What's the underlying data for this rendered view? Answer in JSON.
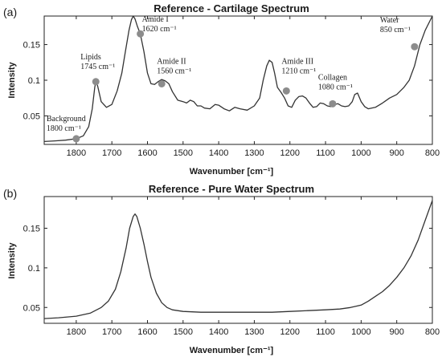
{
  "colors": {
    "line": "#333333",
    "marker": "#8c8c8c",
    "axes": "#222222"
  },
  "chart_data": [
    {
      "type": "line",
      "panel_label": "(a)",
      "title": "Reference - Cartilage Spectrum",
      "xlabel": "Wavenumber [cm⁻¹]",
      "ylabel": "Intensity",
      "xlim": [
        1890,
        800
      ],
      "ylim": [
        0.01,
        0.19
      ],
      "x_reversed": true,
      "grid": false,
      "xticks": [
        1800,
        1700,
        1600,
        1500,
        1400,
        1300,
        1200,
        1100,
        1000,
        900,
        800
      ],
      "yticks": [
        0.05,
        0.1,
        0.15
      ],
      "ytick_labels": [
        "0.05",
        "0.1",
        "0.15"
      ],
      "series": [
        {
          "x": [
            1890,
            1860,
            1830,
            1800,
            1780,
            1765,
            1755,
            1748,
            1745,
            1740,
            1730,
            1715,
            1700,
            1685,
            1672,
            1662,
            1652,
            1645,
            1640,
            1635,
            1628,
            1620,
            1610,
            1600,
            1590,
            1580,
            1570,
            1560,
            1550,
            1540,
            1530,
            1515,
            1500,
            1490,
            1480,
            1470,
            1460,
            1450,
            1440,
            1425,
            1410,
            1400,
            1385,
            1370,
            1355,
            1340,
            1320,
            1300,
            1285,
            1275,
            1265,
            1258,
            1250,
            1243,
            1235,
            1225,
            1215,
            1205,
            1195,
            1185,
            1175,
            1165,
            1155,
            1145,
            1135,
            1125,
            1115,
            1105,
            1095,
            1085,
            1075,
            1065,
            1055,
            1045,
            1035,
            1025,
            1018,
            1010,
            1000,
            990,
            980,
            960,
            940,
            920,
            900,
            880,
            865,
            850,
            835,
            820,
            800
          ],
          "y": [
            0.014,
            0.015,
            0.016,
            0.018,
            0.022,
            0.035,
            0.06,
            0.09,
            0.098,
            0.092,
            0.07,
            0.062,
            0.066,
            0.085,
            0.11,
            0.14,
            0.17,
            0.185,
            0.19,
            0.186,
            0.175,
            0.165,
            0.14,
            0.11,
            0.095,
            0.094,
            0.098,
            0.101,
            0.099,
            0.095,
            0.084,
            0.072,
            0.07,
            0.068,
            0.072,
            0.07,
            0.064,
            0.064,
            0.061,
            0.06,
            0.066,
            0.065,
            0.06,
            0.057,
            0.062,
            0.06,
            0.058,
            0.064,
            0.075,
            0.1,
            0.12,
            0.128,
            0.125,
            0.11,
            0.09,
            0.083,
            0.075,
            0.064,
            0.062,
            0.072,
            0.077,
            0.078,
            0.075,
            0.068,
            0.062,
            0.063,
            0.068,
            0.067,
            0.064,
            0.063,
            0.066,
            0.067,
            0.064,
            0.063,
            0.064,
            0.07,
            0.08,
            0.082,
            0.07,
            0.063,
            0.06,
            0.062,
            0.068,
            0.075,
            0.08,
            0.09,
            0.1,
            0.12,
            0.15,
            0.17,
            0.195
          ]
        }
      ],
      "annotations": [
        {
          "lines": [
            "Background",
            "1800 cm⁻¹"
          ],
          "x": 1800,
          "y": 0.018
        },
        {
          "lines": [
            "Lipids",
            "1745 cm⁻¹"
          ],
          "x": 1745,
          "y": 0.098
        },
        {
          "lines": [
            "Amide I",
            "1620 cm⁻¹"
          ],
          "x": 1620,
          "y": 0.165
        },
        {
          "lines": [
            "Amide II",
            "1560 cm⁻¹"
          ],
          "x": 1560,
          "y": 0.095
        },
        {
          "lines": [
            "Amide III",
            "1210 cm⁻¹"
          ],
          "x": 1210,
          "y": 0.085
        },
        {
          "lines": [
            "Collagen",
            "1080 cm⁻¹"
          ],
          "x": 1080,
          "y": 0.067
        },
        {
          "lines": [
            "Water",
            "850 cm⁻¹"
          ],
          "x": 850,
          "y": 0.147
        }
      ]
    },
    {
      "type": "line",
      "panel_label": "(b)",
      "title": "Reference - Pure Water Spectrum",
      "xlabel": "Wavenumber [cm⁻¹]",
      "ylabel": "Intensity",
      "xlim": [
        1890,
        800
      ],
      "ylim": [
        0.03,
        0.19
      ],
      "x_reversed": true,
      "grid": false,
      "xticks": [
        1800,
        1700,
        1600,
        1500,
        1400,
        1300,
        1200,
        1100,
        1000,
        900,
        800
      ],
      "yticks": [
        0.05,
        0.1,
        0.15
      ],
      "ytick_labels": [
        "0.05",
        "0.1",
        "0.15"
      ],
      "series": [
        {
          "x": [
            1890,
            1850,
            1800,
            1760,
            1730,
            1710,
            1690,
            1675,
            1660,
            1650,
            1640,
            1635,
            1630,
            1620,
            1610,
            1600,
            1590,
            1575,
            1560,
            1545,
            1530,
            1500,
            1450,
            1400,
            1350,
            1300,
            1250,
            1200,
            1150,
            1100,
            1060,
            1030,
            1000,
            980,
            960,
            940,
            920,
            900,
            880,
            860,
            840,
            820,
            800
          ],
          "y": [
            0.036,
            0.037,
            0.039,
            0.043,
            0.05,
            0.058,
            0.073,
            0.095,
            0.125,
            0.15,
            0.165,
            0.168,
            0.165,
            0.15,
            0.13,
            0.108,
            0.088,
            0.068,
            0.056,
            0.05,
            0.047,
            0.045,
            0.044,
            0.044,
            0.044,
            0.044,
            0.044,
            0.045,
            0.046,
            0.047,
            0.048,
            0.05,
            0.053,
            0.058,
            0.064,
            0.07,
            0.078,
            0.088,
            0.1,
            0.115,
            0.135,
            0.16,
            0.185
          ]
        }
      ],
      "annotations": []
    }
  ]
}
